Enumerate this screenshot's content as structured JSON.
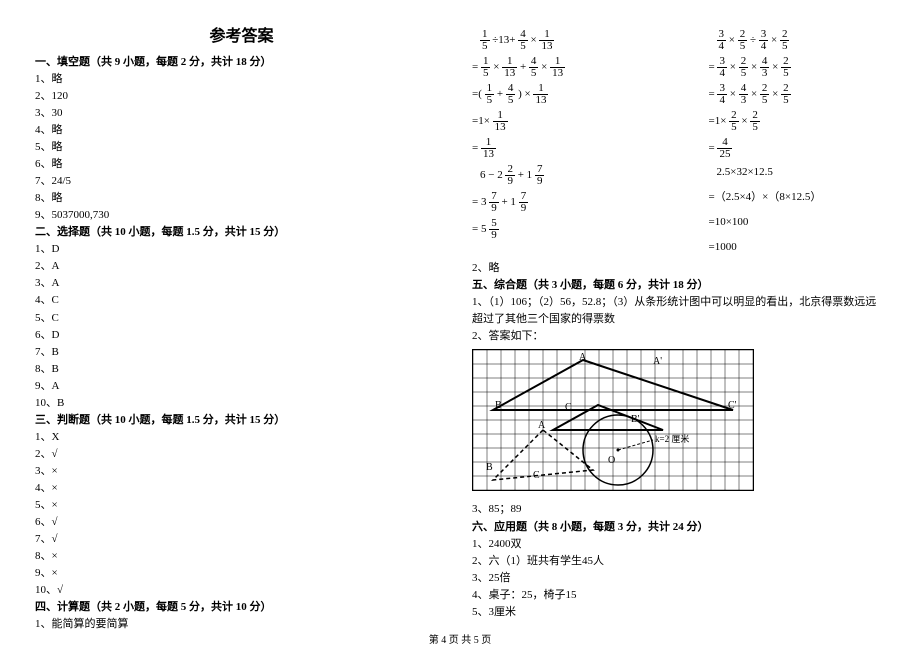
{
  "title": "参考答案",
  "sections": {
    "s1": {
      "heading": "一、填空题（共 9 小题，每题 2 分，共计 18 分）",
      "items": [
        "1、略",
        "2、120",
        "3、30",
        "4、略",
        "5、略",
        "6、略",
        "7、24/5",
        "8、略",
        "9、5037000,730"
      ]
    },
    "s2": {
      "heading": "二、选择题（共 10 小题，每题 1.5 分，共计 15 分）",
      "items": [
        "1、D",
        "2、A",
        "3、A",
        "4、C",
        "5、C",
        "6、D",
        "7、B",
        "8、B",
        "9、A",
        "10、B"
      ]
    },
    "s3": {
      "heading": "三、判断题（共 10 小题，每题 1.5 分，共计 15 分）",
      "items": [
        "1、X",
        "2、√",
        "3、×",
        "4、×",
        "5、×",
        "6、√",
        "7、√",
        "8、×",
        "9、×",
        "10、√"
      ]
    },
    "s4": {
      "heading": "四、计算题（共 2 小题，每题 5 分，共计 10 分）",
      "lead": "1、能简算的要简算",
      "calcA": {
        "l0": {
          "pre": "",
          "a": [
            "1",
            "5"
          ],
          "op1": "÷13+",
          "b": [
            "4",
            "5"
          ],
          "op2": "×",
          "c": [
            "1",
            "13"
          ]
        },
        "l1": {
          "pre": "=",
          "a": [
            "1",
            "5"
          ],
          "op1": "×",
          "b": [
            "1",
            "13"
          ],
          "op2": "+",
          "c": [
            "4",
            "5"
          ],
          "op3": "×",
          "d": [
            "1",
            "13"
          ]
        },
        "l2": {
          "pre": "=(",
          "a": [
            "1",
            "5"
          ],
          "op1": "+",
          "b": [
            "4",
            "5"
          ],
          "post": ") ×",
          "c": [
            "1",
            "13"
          ]
        },
        "l3": {
          "pre": "=1×",
          "a": [
            "1",
            "13"
          ]
        },
        "l4": {
          "pre": "=",
          "a": [
            "1",
            "13"
          ]
        },
        "l5": {
          "pre": "",
          "txt": "6 − 2",
          "a": [
            "2",
            "9"
          ],
          "op1": "+ 1",
          "b": [
            "7",
            "9"
          ]
        },
        "l6": {
          "pre": "=",
          "txt": "3",
          "a": [
            "7",
            "9"
          ],
          "op1": "+ 1",
          "b": [
            "7",
            "9"
          ]
        },
        "l7": {
          "pre": "=",
          "txt": "5",
          "a": [
            "5",
            "9"
          ]
        }
      },
      "calcB": {
        "l0": {
          "pre": "",
          "a": [
            "3",
            "4"
          ],
          "op1": "×",
          "b": [
            "2",
            "5"
          ],
          "op2": "÷",
          "c": [
            "3",
            "4"
          ],
          "op3": "×",
          "d": [
            "2",
            "5"
          ]
        },
        "l1": {
          "pre": "=",
          "a": [
            "3",
            "4"
          ],
          "op1": "×",
          "b": [
            "2",
            "5"
          ],
          "op2": "×",
          "c": [
            "4",
            "3"
          ],
          "op3": "×",
          "d": [
            "2",
            "5"
          ]
        },
        "l2": {
          "pre": "=",
          "a": [
            "3",
            "4"
          ],
          "op1": "×",
          "b": [
            "4",
            "3"
          ],
          "op2": "×",
          "c": [
            "2",
            "5"
          ],
          "op3": "×",
          "d": [
            "2",
            "5"
          ]
        },
        "l3": {
          "pre": "=1×",
          "a": [
            "2",
            "5"
          ],
          "op1": "×",
          "b": [
            "2",
            "5"
          ]
        },
        "l4": {
          "pre": "=",
          "a": [
            "4",
            "25"
          ]
        },
        "l5": "2.5×32×12.5",
        "l6": "=（2.5×4）×（8×12.5）",
        "l7": "=10×100",
        "l8": "=1000"
      },
      "item2": "2、略"
    },
    "s5": {
      "heading": "五、综合题（共 3 小题，每题 6 分，共计 18 分）",
      "item1": "1、（1）106；（2）56，52.8；（3）从条形统计图中可以明显的看出，北京得票数远远超过了其他三个国家的得票数",
      "lead2": "2、答案如下：",
      "item3": "3、85；89"
    },
    "s6": {
      "heading": "六、应用题（共 8 小题，每题 3 分，共计 24 分）",
      "items": [
        "1、2400双",
        "2、六（1）班共有学生45人",
        "3、25倍",
        "4、桌子：25，椅子15",
        "5、3厘米"
      ]
    },
    "footer": "第 4 页 共 5 页"
  },
  "grid": {
    "label_A": "A",
    "label_A2": "A'",
    "label_B": "B",
    "label_B2": "B'",
    "label_C": "C",
    "label_C2": "C'",
    "label_O": "O",
    "label_k": "k=2 厘米"
  }
}
